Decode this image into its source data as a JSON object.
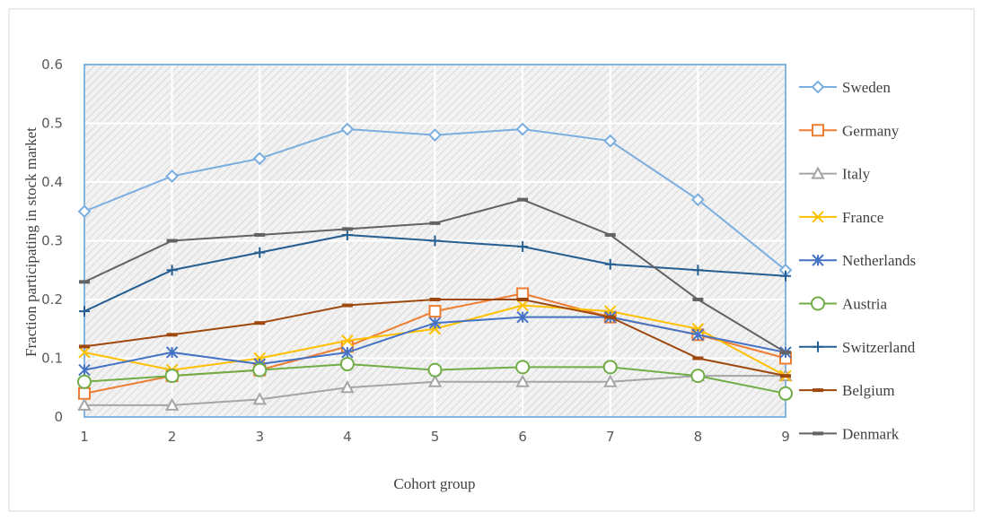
{
  "chart_data": {
    "type": "line",
    "x_label": "Cohort group",
    "y_label": "Fraction participating in stock market",
    "x": [
      1,
      2,
      3,
      4,
      5,
      6,
      7,
      8,
      9
    ],
    "xlim": [
      1,
      9
    ],
    "xticks": [
      1,
      2,
      3,
      4,
      5,
      6,
      7,
      8,
      9
    ],
    "ylim": [
      0,
      0.6
    ],
    "yticks": [
      0,
      0.1,
      0.2,
      0.3,
      0.4,
      0.5,
      0.6
    ],
    "grid": true,
    "legend": "right",
    "series": [
      {
        "name": "Sweden",
        "color": "#7aaee0",
        "marker": "diamond",
        "values": [
          0.35,
          0.41,
          0.44,
          0.49,
          0.48,
          0.49,
          0.47,
          0.37,
          0.25
        ]
      },
      {
        "name": "Germany",
        "color": "#ed7d31",
        "marker": "square",
        "values": [
          0.04,
          0.07,
          0.08,
          0.12,
          0.18,
          0.21,
          0.17,
          0.14,
          0.1
        ]
      },
      {
        "name": "Italy",
        "color": "#a5a5a5",
        "marker": "triangle",
        "values": [
          0.02,
          0.02,
          0.03,
          0.05,
          0.06,
          0.06,
          0.06,
          0.07,
          0.07
        ]
      },
      {
        "name": "France",
        "color": "#ffc000",
        "marker": "x",
        "values": [
          0.11,
          0.08,
          0.1,
          0.13,
          0.15,
          0.19,
          0.18,
          0.15,
          0.07
        ]
      },
      {
        "name": "Netherlands",
        "color": "#4472c4",
        "marker": "asterisk",
        "values": [
          0.08,
          0.11,
          0.09,
          0.11,
          0.16,
          0.17,
          0.17,
          0.14,
          0.11
        ]
      },
      {
        "name": "Austria",
        "color": "#70ad47",
        "marker": "circle",
        "values": [
          0.06,
          0.07,
          0.08,
          0.09,
          0.08,
          0.085,
          0.085,
          0.07,
          0.04
        ]
      },
      {
        "name": "Switzerland",
        "color": "#255e91",
        "marker": "plus",
        "values": [
          0.18,
          0.25,
          0.28,
          0.31,
          0.3,
          0.29,
          0.26,
          0.25,
          0.24
        ]
      },
      {
        "name": "Belgium",
        "color": "#9e480e",
        "marker": "dash",
        "values": [
          0.12,
          0.14,
          0.16,
          0.19,
          0.2,
          0.2,
          0.17,
          0.1,
          0.07
        ]
      },
      {
        "name": "Denmark",
        "color": "#636363",
        "marker": "dash",
        "values": [
          0.23,
          0.3,
          0.31,
          0.32,
          0.33,
          0.37,
          0.31,
          0.2,
          0.11
        ]
      }
    ]
  }
}
